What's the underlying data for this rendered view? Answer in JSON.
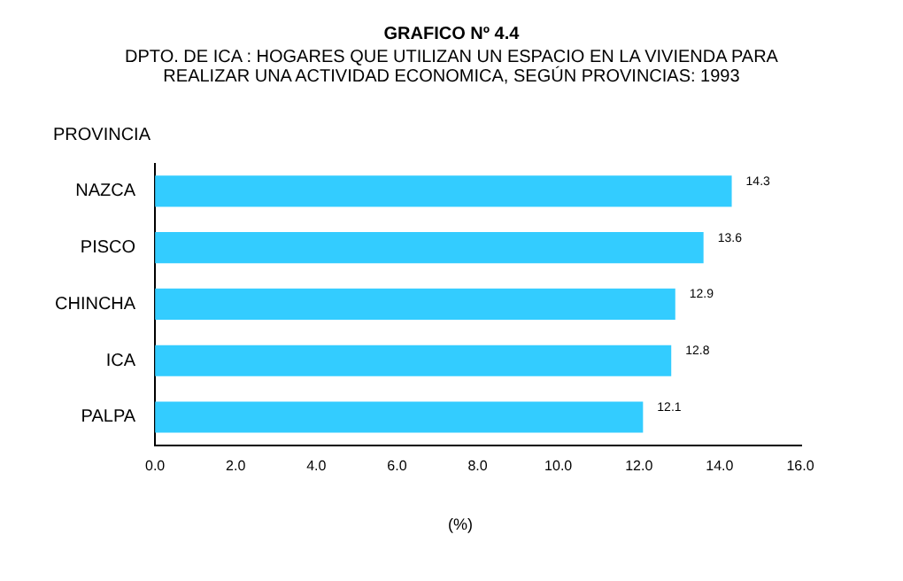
{
  "chart_data": {
    "type": "bar",
    "orientation": "horizontal",
    "title": "GRAFICO Nº 4.4",
    "subtitle": "DPTO. DE ICA : HOGARES QUE UTILIZAN UN ESPACIO EN LA VIVIENDA PARA\nREALIZAR UNA ACTIVIDAD ECONOMICA, SEGÚN PROVINCIAS: 1993",
    "ylabel": "PROVINCIA",
    "xlabel": "(%)",
    "categories": [
      "NAZCA",
      "PISCO",
      "CHINCHA",
      "ICA",
      "PALPA"
    ],
    "values": [
      14.3,
      13.6,
      12.9,
      12.8,
      12.1
    ],
    "color": "#33ccff",
    "xlim": [
      0,
      16
    ],
    "xticks": [
      {
        "value": 0,
        "label": "0.0"
      },
      {
        "value": 2,
        "label": "2.0"
      },
      {
        "value": 4,
        "label": "4.0"
      },
      {
        "value": 6,
        "label": "6.0"
      },
      {
        "value": 8,
        "label": "8.0"
      },
      {
        "value": 10,
        "label": "10.0"
      },
      {
        "value": 12,
        "label": "12.0"
      },
      {
        "value": 14,
        "label": "14.0"
      },
      {
        "value": 16,
        "label": "16.0"
      }
    ],
    "data_labels": true,
    "grid": false,
    "legend": false
  }
}
